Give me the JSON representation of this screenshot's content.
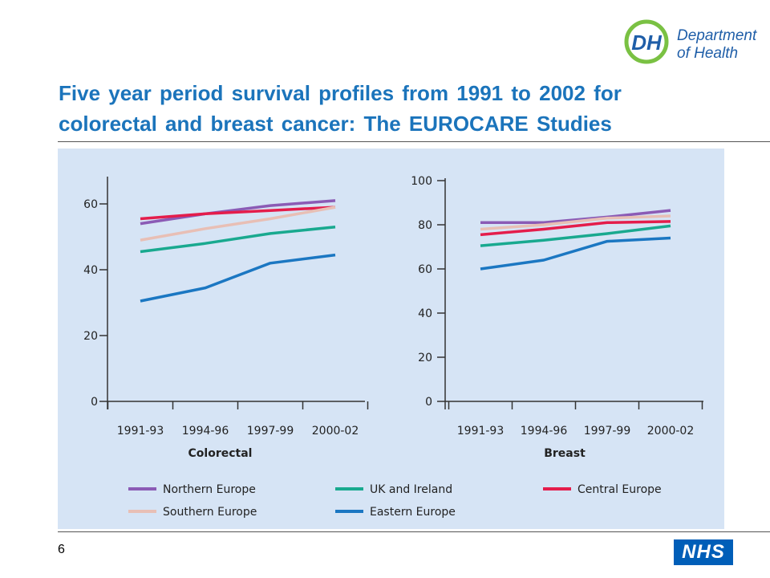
{
  "header": {
    "logo": {
      "monogram": "DH",
      "line1": "Department",
      "line2": "of Health",
      "color": "#1f5ea8",
      "accent": "#7ac143"
    },
    "title": "Five year period survival profiles from 1991 to 2002 for colorectal and breast cancer: The EUROCARE Studies"
  },
  "footer": {
    "page_number": "6",
    "nhs_logo": "NHS",
    "nhs_color": "#005eb8"
  },
  "series_styles": [
    {
      "name": "Northern Europe",
      "color": "#8b5bb5"
    },
    {
      "name": "UK and Ireland",
      "color": "#19a98f"
    },
    {
      "name": "Central Europe",
      "color": "#e41d4b"
    },
    {
      "name": "Southern Europe",
      "color": "#e8bfb5"
    },
    {
      "name": "Eastern Europe",
      "color": "#1b77c2"
    }
  ],
  "chart_data": [
    {
      "type": "line",
      "title": "",
      "xlabel": "Colorectal",
      "ylabel": "",
      "categories": [
        "1991-93",
        "1994-96",
        "1997-99",
        "2000-02"
      ],
      "ylim": [
        0,
        65
      ],
      "yticks": [
        0,
        20,
        40,
        60
      ],
      "grid": false,
      "series": [
        {
          "name": "Northern Europe",
          "values": [
            54,
            57,
            59.5,
            61
          ]
        },
        {
          "name": "UK and Ireland",
          "values": [
            45.5,
            48,
            51,
            53
          ]
        },
        {
          "name": "Central Europe",
          "values": [
            55.5,
            57,
            58,
            59
          ]
        },
        {
          "name": "Southern Europe",
          "values": [
            49,
            52.5,
            55.5,
            59
          ]
        },
        {
          "name": "Eastern Europe",
          "values": [
            30.5,
            34.5,
            42,
            44.5
          ]
        }
      ]
    },
    {
      "type": "line",
      "title": "",
      "xlabel": "Breast",
      "ylabel": "",
      "categories": [
        "1991-93",
        "1994-96",
        "1997-99",
        "2000-02"
      ],
      "ylim": [
        0,
        100
      ],
      "yticks": [
        0,
        20,
        40,
        60,
        80,
        100
      ],
      "grid": false,
      "series": [
        {
          "name": "Northern Europe",
          "values": [
            81,
            81,
            83.5,
            86.5
          ]
        },
        {
          "name": "UK and Ireland",
          "values": [
            70.5,
            73,
            76,
            79.5
          ]
        },
        {
          "name": "Central Europe",
          "values": [
            75.5,
            78,
            81,
            81.5
          ]
        },
        {
          "name": "Southern Europe",
          "values": [
            78,
            80,
            83,
            84
          ]
        },
        {
          "name": "Eastern Europe",
          "values": [
            60,
            64,
            72.5,
            74
          ]
        }
      ]
    }
  ],
  "legend": {
    "placement": "bottom",
    "items": [
      "Northern Europe",
      "UK and Ireland",
      "Central Europe",
      "Southern Europe",
      "Eastern Europe"
    ]
  }
}
